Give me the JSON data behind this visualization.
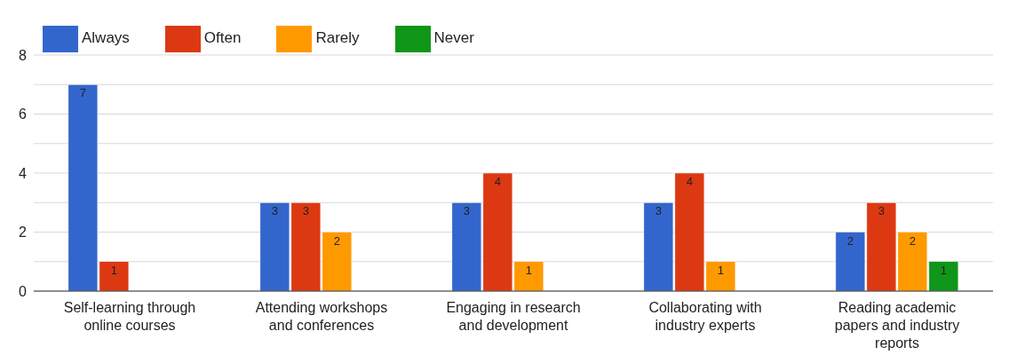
{
  "chart_data": {
    "type": "bar",
    "categories": [
      "Self-learning through online courses",
      "Attending workshops and conferences",
      "Engaging in research and development",
      "Collaborating with industry experts",
      "Reading academic papers and industry reports"
    ],
    "series": [
      {
        "name": "Always",
        "color": "#3366cc",
        "values": [
          7,
          3,
          3,
          3,
          2
        ],
        "value_labels": [
          "7",
          "3",
          "3",
          "3",
          "2"
        ]
      },
      {
        "name": "Often",
        "color": "#dc3912",
        "values": [
          1,
          3,
          4,
          4,
          3
        ],
        "value_labels": [
          "1",
          "3",
          "4",
          "4",
          "3"
        ]
      },
      {
        "name": "Rarely",
        "color": "#ff9900",
        "values": [
          0,
          2,
          1,
          1,
          2
        ],
        "value_labels": [
          null,
          "2",
          "1",
          "1",
          "2"
        ]
      },
      {
        "name": "Never",
        "color": "#109618",
        "values": [
          0,
          0,
          0,
          0,
          1
        ],
        "value_labels": [
          null,
          null,
          null,
          null,
          "1"
        ]
      }
    ],
    "ylim": [
      0,
      8
    ],
    "yticks": [
      0,
      {
        "value": 1,
        "label": null
      },
      2,
      {
        "value": 3,
        "label": null
      },
      4,
      {
        "value": 5,
        "label": null
      },
      6,
      {
        "value": 7,
        "label": null
      },
      8
    ],
    "grid": "y",
    "legend": "top left"
  }
}
